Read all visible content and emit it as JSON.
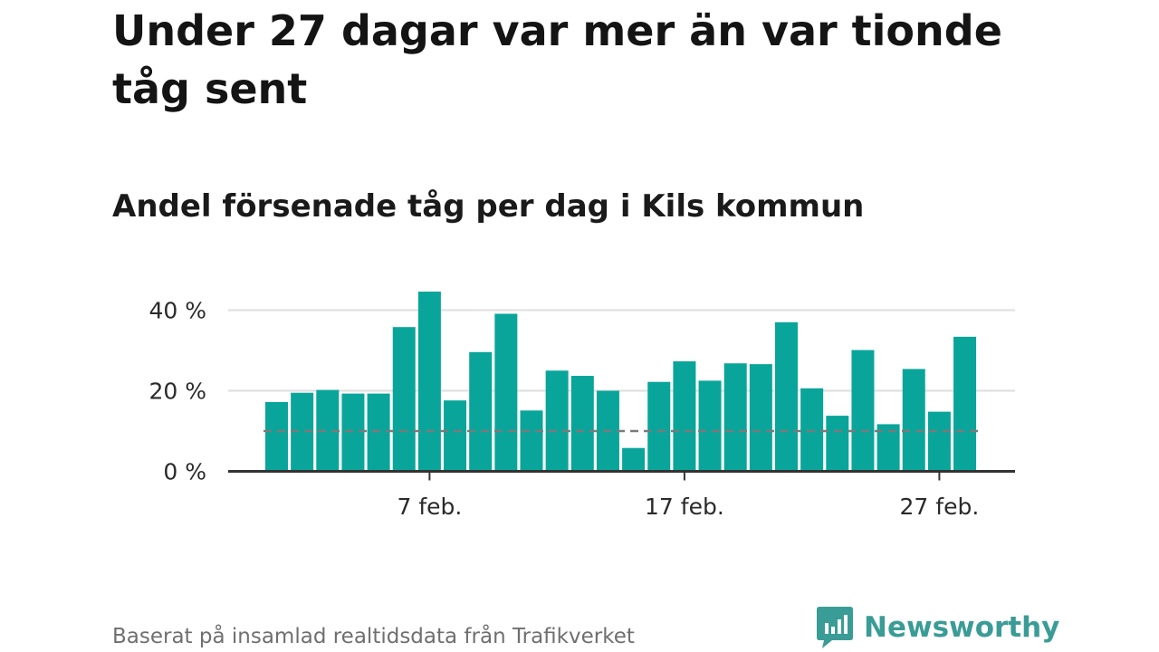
{
  "title": "Under 27 dagar var mer än var tionde tåg sent",
  "subtitle": "Andel försenade tåg per dag i Kils kommun",
  "source": "Baserat på insamlad realtidsdata från Trafikverket",
  "brand": {
    "name": "Newsworthy",
    "icon": "newsworthy-logo-icon"
  },
  "colors": {
    "bar": "#0aa59a",
    "reference_line": "#7a7a7a",
    "grid": "#dedede",
    "axis": "#333333",
    "brand": "#3a9c96"
  },
  "chart_data": {
    "type": "bar",
    "x": [
      "1 feb.",
      "2 feb.",
      "3 feb.",
      "4 feb.",
      "5 feb.",
      "6 feb.",
      "7 feb.",
      "8 feb.",
      "9 feb.",
      "10 feb.",
      "11 feb.",
      "12 feb.",
      "13 feb.",
      "14 feb.",
      "15 feb.",
      "16 feb.",
      "17 feb.",
      "18 feb.",
      "19 feb.",
      "20 feb.",
      "21 feb.",
      "22 feb.",
      "23 feb.",
      "24 feb.",
      "25 feb.",
      "26 feb.",
      "27 feb.",
      "28 feb."
    ],
    "values": [
      17.2,
      19.5,
      20.2,
      19.3,
      19.3,
      35.8,
      44.6,
      17.6,
      29.6,
      39.1,
      15.1,
      25.0,
      23.7,
      20.0,
      5.8,
      22.2,
      27.3,
      22.5,
      26.8,
      26.6,
      37.0,
      20.6,
      13.8,
      30.1,
      11.7,
      25.4,
      14.8,
      33.4
    ],
    "ylim": [
      0,
      45
    ],
    "y_ticks": [
      0,
      20,
      40
    ],
    "y_tick_labels": [
      "0 %",
      "20 %",
      "40 %"
    ],
    "x_ticks": [
      "7 feb.",
      "17 feb.",
      "27 feb."
    ],
    "reference_line": 10,
    "grid": true,
    "xlabel": "",
    "ylabel": ""
  }
}
